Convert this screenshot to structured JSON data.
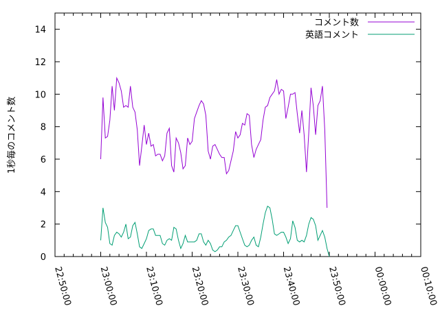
{
  "chart_data": {
    "type": "line",
    "title": "",
    "xlabel": "",
    "ylabel": "1秒毎のコメント数",
    "ylim": [
      0,
      15
    ],
    "yticks": [
      0,
      2,
      4,
      6,
      8,
      10,
      12,
      14
    ],
    "x_unit": "minutes relative to 23:00:00",
    "xlim": [
      -10,
      70
    ],
    "xticks": [
      {
        "x": -10,
        "label": "22:50:00"
      },
      {
        "x": 0,
        "label": "23:00:00"
      },
      {
        "x": 10,
        "label": "23:10:00"
      },
      {
        "x": 20,
        "label": "23:20:00"
      },
      {
        "x": 30,
        "label": "23:30:00"
      },
      {
        "x": 40,
        "label": "23:40:00"
      },
      {
        "x": 50,
        "label": "23:50:00"
      },
      {
        "x": 60,
        "label": "00:00:00"
      },
      {
        "x": 70,
        "label": "00:10:00"
      }
    ],
    "grid": false,
    "legend_position": "top-right",
    "series": [
      {
        "name": "コメント数",
        "color": "#9400d3",
        "points": [
          [
            0.0,
            6.0
          ],
          [
            0.5,
            9.8
          ],
          [
            1.0,
            7.3
          ],
          [
            1.5,
            7.4
          ],
          [
            2.0,
            8.4
          ],
          [
            2.5,
            10.5
          ],
          [
            3.0,
            9.0
          ],
          [
            3.5,
            11.0
          ],
          [
            4.0,
            10.7
          ],
          [
            4.5,
            10.2
          ],
          [
            5.0,
            9.2
          ],
          [
            5.5,
            9.3
          ],
          [
            6.0,
            9.2
          ],
          [
            6.5,
            10.5
          ],
          [
            7.0,
            9.2
          ],
          [
            7.5,
            8.9
          ],
          [
            8.0,
            7.8
          ],
          [
            8.5,
            5.6
          ],
          [
            9.0,
            6.8
          ],
          [
            9.5,
            8.1
          ],
          [
            10.0,
            6.9
          ],
          [
            10.5,
            7.6
          ],
          [
            11.0,
            6.8
          ],
          [
            11.5,
            6.9
          ],
          [
            12.0,
            6.2
          ],
          [
            12.5,
            6.3
          ],
          [
            13.0,
            6.3
          ],
          [
            13.5,
            5.9
          ],
          [
            14.0,
            6.2
          ],
          [
            14.5,
            7.6
          ],
          [
            15.0,
            7.9
          ],
          [
            15.5,
            5.6
          ],
          [
            16.0,
            5.2
          ],
          [
            16.5,
            7.3
          ],
          [
            17.0,
            7.0
          ],
          [
            17.5,
            6.4
          ],
          [
            18.0,
            5.4
          ],
          [
            18.5,
            5.6
          ],
          [
            19.0,
            7.3
          ],
          [
            19.5,
            6.9
          ],
          [
            20.0,
            7.1
          ],
          [
            20.5,
            8.5
          ],
          [
            21.0,
            8.9
          ],
          [
            21.5,
            9.3
          ],
          [
            22.0,
            9.6
          ],
          [
            22.5,
            9.4
          ],
          [
            23.0,
            8.7
          ],
          [
            23.5,
            6.5
          ],
          [
            24.0,
            6.0
          ],
          [
            24.5,
            6.8
          ],
          [
            25.0,
            6.9
          ],
          [
            25.5,
            6.6
          ],
          [
            26.0,
            6.3
          ],
          [
            26.5,
            6.1
          ],
          [
            27.0,
            6.1
          ],
          [
            27.5,
            5.1
          ],
          [
            28.0,
            5.3
          ],
          [
            28.5,
            5.9
          ],
          [
            29.0,
            6.5
          ],
          [
            29.5,
            7.7
          ],
          [
            30.0,
            7.3
          ],
          [
            30.5,
            7.5
          ],
          [
            31.0,
            8.2
          ],
          [
            31.5,
            8.1
          ],
          [
            32.0,
            8.8
          ],
          [
            32.5,
            8.7
          ],
          [
            33.0,
            6.9
          ],
          [
            33.5,
            6.1
          ],
          [
            34.0,
            6.6
          ],
          [
            34.5,
            6.9
          ],
          [
            35.0,
            7.2
          ],
          [
            35.5,
            8.4
          ],
          [
            36.0,
            9.2
          ],
          [
            36.5,
            9.3
          ],
          [
            37.0,
            9.8
          ],
          [
            37.5,
            10.0
          ],
          [
            38.0,
            10.2
          ],
          [
            38.5,
            10.9
          ],
          [
            39.0,
            10.0
          ],
          [
            39.5,
            10.3
          ],
          [
            40.0,
            10.2
          ],
          [
            40.5,
            8.5
          ],
          [
            41.0,
            9.2
          ],
          [
            41.5,
            10.0
          ],
          [
            42.0,
            10.0
          ],
          [
            42.5,
            10.1
          ],
          [
            43.0,
            8.8
          ],
          [
            43.5,
            7.6
          ],
          [
            44.0,
            9.0
          ],
          [
            44.5,
            7.5
          ],
          [
            45.0,
            5.2
          ],
          [
            45.5,
            7.6
          ],
          [
            46.0,
            10.4
          ],
          [
            46.5,
            9.3
          ],
          [
            47.0,
            7.5
          ],
          [
            47.5,
            9.3
          ],
          [
            48.0,
            9.6
          ],
          [
            48.5,
            10.5
          ],
          [
            49.0,
            7.8
          ],
          [
            49.5,
            3.0
          ]
        ]
      },
      {
        "name": "英語コメント",
        "color": "#009e73",
        "points": [
          [
            0.0,
            1.0
          ],
          [
            0.5,
            3.0
          ],
          [
            1.0,
            2.1
          ],
          [
            1.5,
            1.8
          ],
          [
            2.0,
            0.8
          ],
          [
            2.5,
            0.7
          ],
          [
            3.0,
            1.3
          ],
          [
            3.5,
            1.5
          ],
          [
            4.0,
            1.4
          ],
          [
            4.5,
            1.2
          ],
          [
            5.0,
            1.5
          ],
          [
            5.5,
            2.0
          ],
          [
            6.0,
            1.1
          ],
          [
            6.5,
            1.2
          ],
          [
            7.0,
            1.9
          ],
          [
            7.5,
            2.1
          ],
          [
            8.0,
            1.4
          ],
          [
            8.5,
            0.6
          ],
          [
            9.0,
            0.5
          ],
          [
            9.5,
            0.8
          ],
          [
            10.0,
            1.1
          ],
          [
            10.5,
            1.6
          ],
          [
            11.0,
            1.7
          ],
          [
            11.5,
            1.7
          ],
          [
            12.0,
            1.3
          ],
          [
            12.5,
            1.3
          ],
          [
            13.0,
            1.3
          ],
          [
            13.5,
            0.8
          ],
          [
            14.0,
            0.7
          ],
          [
            14.5,
            1.0
          ],
          [
            15.0,
            1.1
          ],
          [
            15.5,
            1.0
          ],
          [
            16.0,
            1.8
          ],
          [
            16.5,
            1.7
          ],
          [
            17.0,
            1.0
          ],
          [
            17.5,
            0.5
          ],
          [
            18.0,
            0.8
          ],
          [
            18.5,
            1.3
          ],
          [
            19.0,
            0.9
          ],
          [
            19.5,
            0.9
          ],
          [
            20.0,
            0.9
          ],
          [
            20.5,
            0.9
          ],
          [
            21.0,
            1.0
          ],
          [
            21.5,
            1.4
          ],
          [
            22.0,
            1.4
          ],
          [
            22.5,
            0.9
          ],
          [
            23.0,
            0.7
          ],
          [
            23.5,
            1.0
          ],
          [
            24.0,
            0.8
          ],
          [
            24.5,
            0.4
          ],
          [
            25.0,
            0.3
          ],
          [
            25.5,
            0.4
          ],
          [
            26.0,
            0.6
          ],
          [
            26.5,
            0.6
          ],
          [
            27.0,
            0.9
          ],
          [
            27.5,
            1.0
          ],
          [
            28.0,
            1.2
          ],
          [
            28.5,
            1.3
          ],
          [
            29.0,
            1.6
          ],
          [
            29.5,
            1.9
          ],
          [
            30.0,
            1.9
          ],
          [
            30.5,
            1.5
          ],
          [
            31.0,
            1.1
          ],
          [
            31.5,
            0.7
          ],
          [
            32.0,
            0.6
          ],
          [
            32.5,
            0.7
          ],
          [
            33.0,
            1.0
          ],
          [
            33.5,
            1.2
          ],
          [
            34.0,
            0.7
          ],
          [
            34.5,
            0.6
          ],
          [
            35.0,
            1.2
          ],
          [
            35.5,
            2.0
          ],
          [
            36.0,
            2.7
          ],
          [
            36.5,
            3.1
          ],
          [
            37.0,
            3.0
          ],
          [
            37.5,
            2.3
          ],
          [
            38.0,
            1.4
          ],
          [
            38.5,
            1.3
          ],
          [
            39.0,
            1.4
          ],
          [
            39.5,
            1.5
          ],
          [
            40.0,
            1.5
          ],
          [
            40.5,
            1.2
          ],
          [
            41.0,
            0.8
          ],
          [
            41.5,
            1.1
          ],
          [
            42.0,
            2.2
          ],
          [
            42.5,
            1.8
          ],
          [
            43.0,
            1.0
          ],
          [
            43.5,
            0.9
          ],
          [
            44.0,
            1.0
          ],
          [
            44.5,
            0.9
          ],
          [
            45.0,
            1.3
          ],
          [
            45.5,
            2.0
          ],
          [
            46.0,
            2.4
          ],
          [
            46.5,
            2.3
          ],
          [
            47.0,
            1.9
          ],
          [
            47.5,
            1.0
          ],
          [
            48.0,
            1.3
          ],
          [
            48.5,
            1.6
          ],
          [
            49.0,
            1.2
          ],
          [
            49.5,
            0.5
          ],
          [
            50.0,
            0.0
          ]
        ]
      }
    ]
  }
}
